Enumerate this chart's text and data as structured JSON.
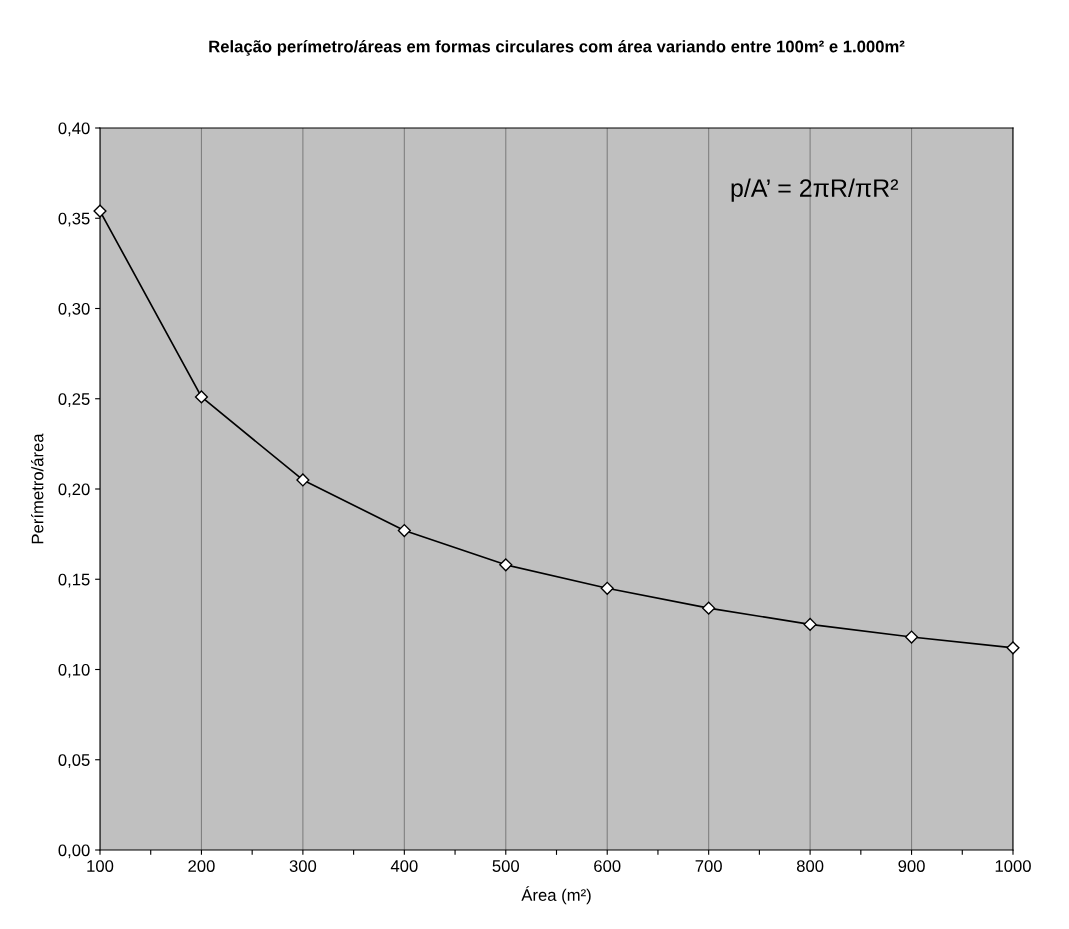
{
  "chart_data": {
    "type": "line",
    "title": "Relação perímetro/áreas em formas circulares com área variando entre 100m² e 1.000m²",
    "xlabel": "Área (m²)",
    "ylabel": "Perímetro/área",
    "x": [
      100,
      200,
      300,
      400,
      500,
      600,
      700,
      800,
      900,
      1000
    ],
    "series": [
      {
        "color": "#000000",
        "values": [
          0.354,
          0.251,
          0.205,
          0.177,
          0.158,
          0.145,
          0.134,
          0.125,
          0.118,
          0.112
        ]
      }
    ],
    "marker": "diamond",
    "line_style": "solid",
    "xlim": [
      100,
      1000
    ],
    "xticks": [
      100,
      {
        "value": 150,
        "label": null
      },
      200,
      {
        "value": 250,
        "label": null
      },
      300,
      {
        "value": 350,
        "label": null
      },
      400,
      {
        "value": 450,
        "label": null
      },
      500,
      {
        "value": 550,
        "label": null
      },
      600,
      {
        "value": 650,
        "label": null
      },
      700,
      {
        "value": 750,
        "label": null
      },
      800,
      {
        "value": 850,
        "label": null
      },
      900,
      {
        "value": 950,
        "label": null
      },
      1000
    ],
    "ylim": [
      0,
      0.4
    ],
    "yticks": [
      {
        "value": 0,
        "label": "0,00"
      },
      {
        "value": 0.05,
        "label": "0,05"
      },
      {
        "value": 0.1,
        "label": "0,10"
      },
      {
        "value": 0.15,
        "label": "0,15"
      },
      {
        "value": 0.2,
        "label": "0,20"
      },
      {
        "value": 0.25,
        "label": "0,25"
      },
      {
        "value": 0.3,
        "label": "0,30"
      },
      {
        "value": 0.35,
        "label": "0,35"
      },
      {
        "value": 0.4,
        "label": "0,40"
      }
    ],
    "grid": "x",
    "annotations": [
      "p/A’ = 2πR/πR²"
    ]
  }
}
